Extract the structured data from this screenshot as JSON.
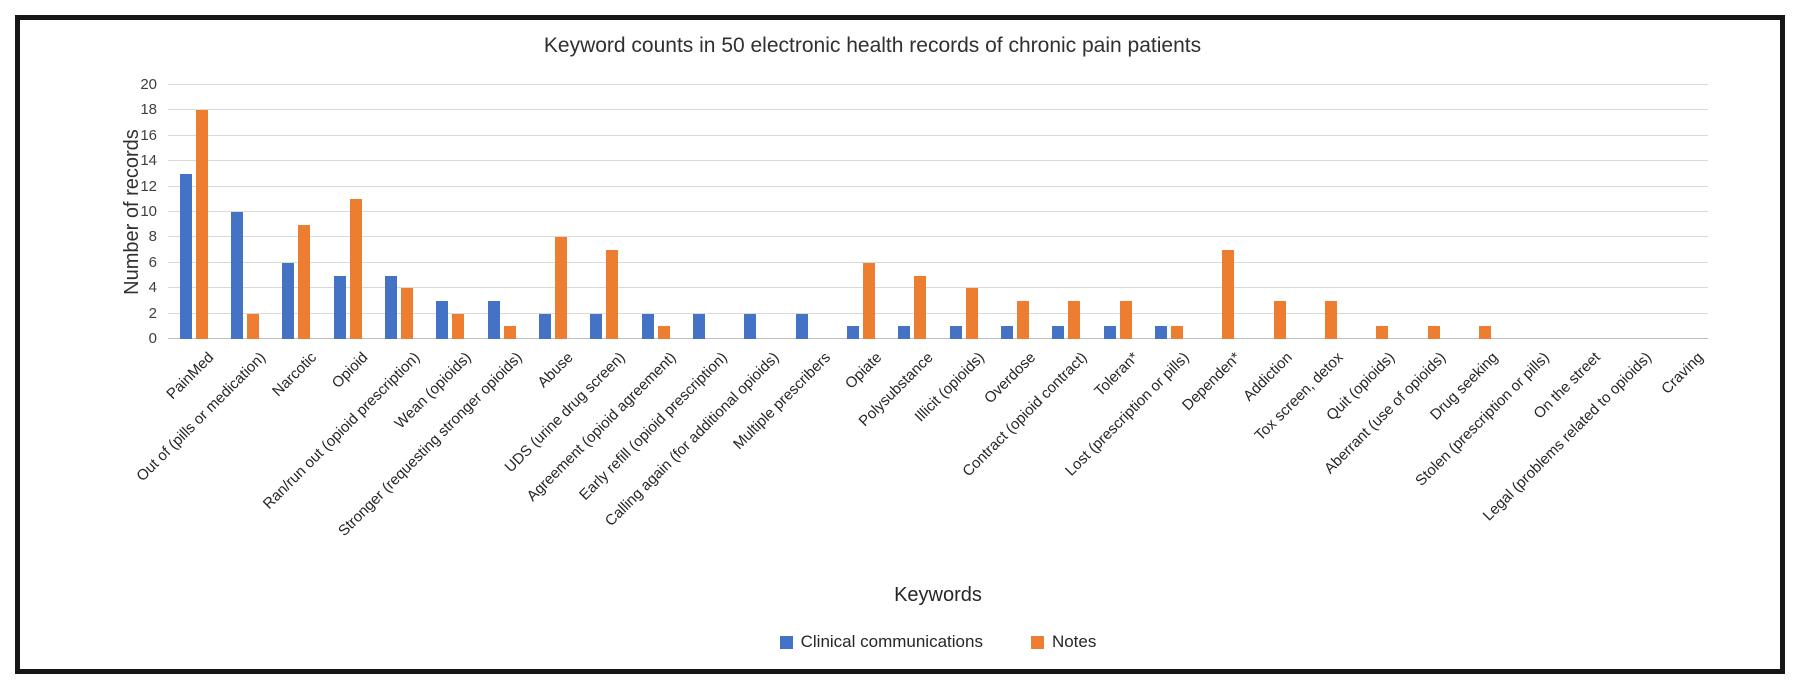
{
  "chart_data": {
    "type": "bar",
    "title": "Keyword counts in 50 electronic health records of chronic pain patients",
    "xlabel": "Keywords",
    "ylabel": "Number of records",
    "ylim": [
      0,
      20
    ],
    "yticks": [
      0,
      2,
      4,
      6,
      8,
      10,
      12,
      14,
      16,
      18,
      20
    ],
    "grid": true,
    "legend_position": "bottom",
    "categories": [
      "PainMed",
      "Out of (pills or medication)",
      "Narcotic",
      "Opioid",
      "Ran/run out (opioid prescription)",
      "Wean (opioids)",
      "Stronger (requesting stronger opioids)",
      "Abuse",
      "UDS (urine drug screen)",
      "Agreement (opioid agreement)",
      "Early refill (opioid prescription)",
      "Calling again (for additional opioids)",
      "Multiple prescribers",
      "Opiate",
      "Polysubstance",
      "Illicit (opioids)",
      "Overdose",
      "Contract (opioid contract)",
      "Toleran*",
      "Lost (prescription or pills)",
      "Dependen*",
      "Addiction",
      "Tox screen, detox",
      "Quit (opioids)",
      "Aberrant (use of opioids)",
      "Drug seeking",
      "Stolen (prescription or pills)",
      "On the street",
      "Legal (problems related to opioids)",
      "Craving"
    ],
    "series": [
      {
        "name": "Clinical communications",
        "color": "#4472C4",
        "values": [
          13,
          10,
          6,
          5,
          5,
          3,
          3,
          2,
          2,
          2,
          2,
          2,
          2,
          1,
          1,
          1,
          1,
          1,
          1,
          1,
          0,
          0,
          0,
          0,
          0,
          0,
          0,
          0,
          0,
          0
        ]
      },
      {
        "name": "Notes",
        "color": "#ED7D31",
        "values": [
          18,
          2,
          9,
          11,
          4,
          2,
          1,
          8,
          7,
          1,
          0,
          0,
          0,
          6,
          5,
          4,
          3,
          3,
          3,
          1,
          7,
          3,
          3,
          1,
          1,
          1,
          0,
          0,
          0,
          0
        ]
      }
    ]
  }
}
